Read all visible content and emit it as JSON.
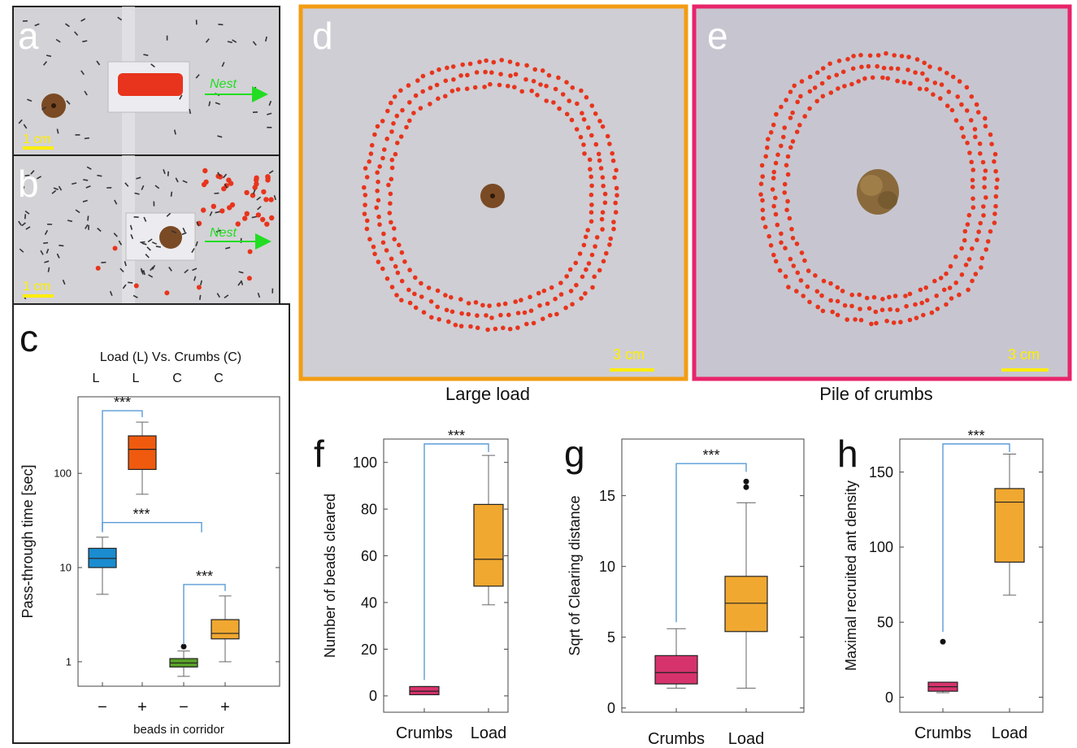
{
  "panels": {
    "a": {
      "letter": "a",
      "scale": "1 cm",
      "arrow": "Nest"
    },
    "b": {
      "letter": "b",
      "scale": "1 cm",
      "arrow": "Nest"
    },
    "c": {
      "letter": "c"
    },
    "d": {
      "letter": "d",
      "scale": "3 cm",
      "caption": "Large load"
    },
    "e": {
      "letter": "e",
      "scale": "3 cm",
      "caption": "Pile of crumbs"
    },
    "f": {
      "letter": "f"
    },
    "g": {
      "letter": "g"
    },
    "h": {
      "letter": "h"
    }
  },
  "colors": {
    "frame_d": "#f39c12",
    "frame_e": "#e8246a",
    "bead": "#e8341c",
    "arrow": "#22dd22",
    "scale": "#ffee00",
    "bracket": "#5b9bd5"
  },
  "chart_data": [
    {
      "id": "c",
      "type": "box",
      "title": "Load (L) Vs. Crumbs (C)",
      "top_labels": [
        "L",
        "L",
        "C",
        "C"
      ],
      "categories": [
        "−",
        "+",
        "−",
        "+"
      ],
      "xlabel": "beads in corridor",
      "ylabel": "Pass-through time [sec]",
      "yscale": "log",
      "ylim": [
        0.55,
        650
      ],
      "yticks": [
        1,
        10,
        100
      ],
      "ytick_labels": [
        "1",
        "10",
        "100"
      ],
      "colors": [
        "#1a8ccf",
        "#f05a0e",
        "#5aa028",
        "#f0a830"
      ],
      "boxes": [
        {
          "low": 5.2,
          "q1": 10,
          "median": 12.5,
          "q3": 16,
          "high": 21,
          "outliers": []
        },
        {
          "low": 60,
          "q1": 110,
          "median": 180,
          "q3": 250,
          "high": 350,
          "outliers": []
        },
        {
          "low": 0.7,
          "q1": 0.88,
          "median": 0.97,
          "q3": 1.08,
          "high": 1.3,
          "outliers": [
            1.45
          ]
        },
        {
          "low": 1.0,
          "q1": 1.75,
          "median": 2.0,
          "q3": 2.8,
          "high": 5.0,
          "outliers": []
        }
      ],
      "significance": [
        {
          "from": 0,
          "to": 1,
          "label": "***"
        },
        {
          "from": 0,
          "to": 2,
          "label": "***"
        },
        {
          "from": 2,
          "to": 3,
          "label": "***"
        }
      ]
    },
    {
      "id": "f",
      "type": "box",
      "categories": [
        "Crumbs",
        "Load"
      ],
      "ylabel": "Number of beads cleared",
      "ylim": [
        -7,
        110
      ],
      "yticks": [
        0,
        20,
        40,
        60,
        80,
        100
      ],
      "ytick_labels": [
        "0",
        "20",
        "40",
        "60",
        "80",
        "100"
      ],
      "colors": [
        "#d6336c",
        "#f0a830"
      ],
      "boxes": [
        {
          "low": 0.5,
          "q1": 0.5,
          "median": 2,
          "q3": 4,
          "high": 4,
          "outliers": []
        },
        {
          "low": 39,
          "q1": 47,
          "median": 58.5,
          "q3": 82,
          "high": 103,
          "outliers": []
        }
      ],
      "significance": [
        {
          "from": 0,
          "to": 1,
          "label": "***"
        }
      ]
    },
    {
      "id": "g",
      "type": "box",
      "categories": [
        "Crumbs",
        "Load"
      ],
      "ylabel": "Sqrt of Clearing distance",
      "ylim": [
        -0.3,
        19
      ],
      "yticks": [
        0,
        5,
        10,
        15
      ],
      "ytick_labels": [
        "0",
        "5",
        "10",
        "15"
      ],
      "colors": [
        "#d6336c",
        "#f0a830"
      ],
      "boxes": [
        {
          "low": 1.4,
          "q1": 1.7,
          "median": 2.5,
          "q3": 3.7,
          "high": 5.6,
          "outliers": []
        },
        {
          "low": 1.4,
          "q1": 5.4,
          "median": 7.4,
          "q3": 9.3,
          "high": 14.5,
          "outliers": [
            15.6,
            16.0
          ]
        }
      ],
      "significance": [
        {
          "from": 0,
          "to": 1,
          "label": "***"
        }
      ]
    },
    {
      "id": "h",
      "type": "box",
      "categories": [
        "Crumbs",
        "Load"
      ],
      "ylabel": "Maximal recruited ant density",
      "ylim": [
        -10,
        172
      ],
      "yticks": [
        0,
        50,
        100,
        150
      ],
      "ytick_labels": [
        "0",
        "50",
        "100",
        "150"
      ],
      "colors": [
        "#d6336c",
        "#f0a830"
      ],
      "boxes": [
        {
          "low": 3,
          "q1": 4,
          "median": 7,
          "q3": 10,
          "high": 10,
          "outliers": [
            37
          ]
        },
        {
          "low": 68,
          "q1": 90,
          "median": 130,
          "q3": 139,
          "high": 162,
          "outliers": []
        }
      ],
      "significance": [
        {
          "from": 0,
          "to": 1,
          "label": "***"
        }
      ]
    }
  ]
}
